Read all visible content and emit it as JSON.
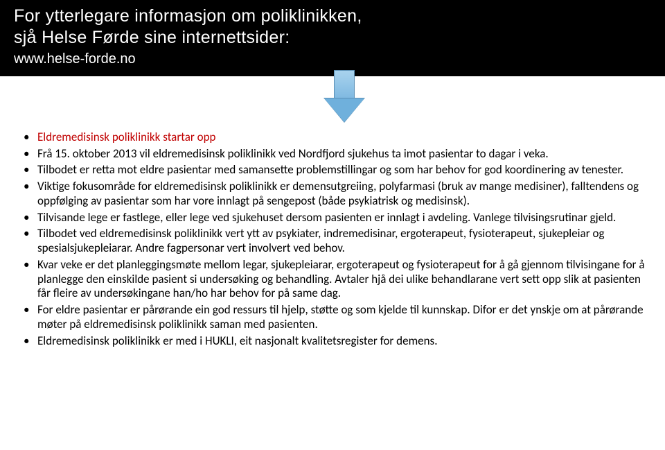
{
  "header": {
    "line1": "For ytterlegare informasjon om poliklinikken,",
    "line2": "sjå Helse Førde sine internettsider:",
    "line3": "www.helse-forde.no"
  },
  "arrow": {
    "fill_top": "#a9d3ee",
    "fill_bottom": "#6fb0dc",
    "border": "#5a8fb5"
  },
  "bullets": [
    {
      "title": "Eldremedisinsk poliklinikk startar opp",
      "title_color": "#c00000"
    },
    {
      "text": "Frå 15. oktober 2013 vil eldremedisinsk poliklinikk ved Nordfjord sjukehus ta imot pasientar to dagar i veka."
    },
    {
      "text": "Tilbodet er retta mot eldre pasientar med samansette problemstillingar og som har behov for god koordinering av tenester."
    },
    {
      "text": "Viktige fokusområde for eldremedisinsk poliklinikk er demensutgreiing, polyfarmasi (bruk av mange medisiner), falltendens og oppfølging av pasientar som har vore innlagt på sengepost (både psykiatrisk og medisinsk)."
    },
    {
      "text": "Tilvisande lege er fastlege, eller lege ved sjukehuset dersom pasienten er innlagt i avdeling. Vanlege tilvisingsrutinar gjeld."
    },
    {
      "text": "Tilbodet ved eldremedisinsk poliklinikk vert ytt av psykiater, indremedisinar, ergoterapeut, fysioterapeut, sjukepleiar og spesialsjukepleiarar. Andre fagpersonar vert involvert ved behov."
    },
    {
      "text": "Kvar veke er det planleggingsmøte mellom legar, sjukepleiarar, ergoterapeut og fysioterapeut for å gå gjennom tilvisingane for å planlegge den einskilde pasient si undersøking og behandling. Avtaler hjå dei ulike behandlarane vert sett opp slik at pasienten får fleire av undersøkingane han/ho har behov for på same dag."
    },
    {
      "text": "For eldre pasientar er pårørande ein god ressurs til hjelp, støtte og som kjelde til kunnskap. Difor er det ynskje om at pårørande møter på eldremedisinsk poliklinikk saman med pasienten."
    },
    {
      "text": "Eldremedisinsk poliklinikk er med i HUKLI, eit nasjonalt kvalitetsregister for demens."
    }
  ],
  "colors": {
    "header_bg": "#000000",
    "header_text": "#ffffff",
    "body_text": "#000000",
    "title_color": "#c00000",
    "page_bg": "#ffffff"
  },
  "typography": {
    "header_font": "Verdana",
    "body_font": "Calibri",
    "header_size_pt": 19,
    "body_size_pt": 13
  }
}
